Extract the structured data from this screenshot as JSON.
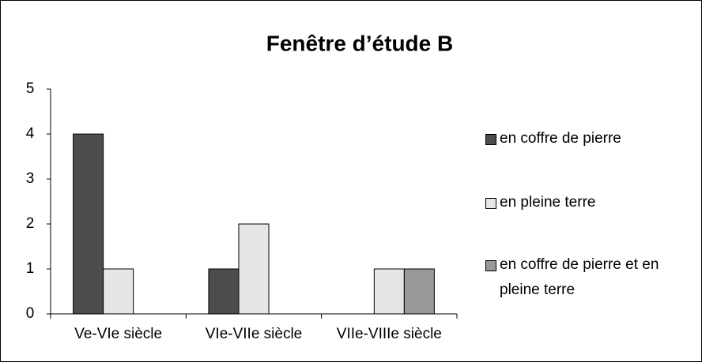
{
  "chart_data": {
    "type": "bar",
    "title": "Fenêtre d’étude B",
    "categories": [
      "Ve-VIe siècle",
      "VIe-VIIe siècle",
      "VIIe-VIIIe siècle"
    ],
    "series": [
      {
        "name": "en coffre de pierre",
        "color": "#4d4d4d",
        "values": [
          4,
          1,
          0
        ]
      },
      {
        "name": "en pleine terre",
        "color": "#e6e6e6",
        "values": [
          1,
          2,
          1
        ]
      },
      {
        "name": "en coffre de pierre et en pleine terre",
        "color": "#999999",
        "values": [
          0,
          0,
          1
        ]
      }
    ],
    "ylim": [
      0,
      5
    ],
    "yticks": [
      0,
      1,
      2,
      3,
      4,
      5
    ],
    "grid": false,
    "legend": "right"
  }
}
